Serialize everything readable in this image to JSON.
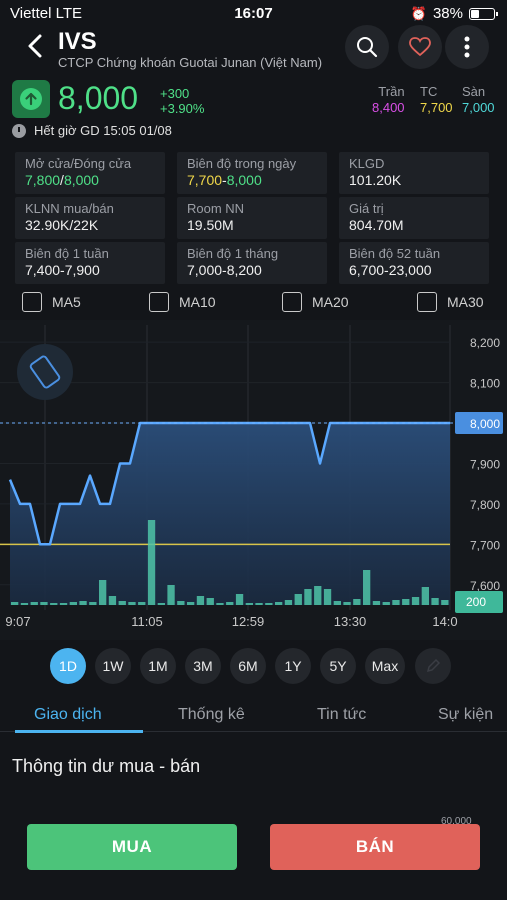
{
  "status": {
    "carrier": "Viettel  LTE",
    "time": "16:07",
    "battery": "38%",
    "battery_level": 0.38
  },
  "header": {
    "symbol": "IVS",
    "company_name": "CTCP Chứng khoán Guotai Junan (Việt Nam)",
    "icons": [
      "back-arrow-icon",
      "search-icon",
      "heart-icon",
      "more-vertical-icon"
    ]
  },
  "quote": {
    "price": "8,000",
    "change": "+300",
    "change_pct": "+3.90%",
    "ceiling_label": "Trần",
    "ceiling": "8,400",
    "ref_label": "TC",
    "ref": "7,700",
    "floor_label": "Sàn",
    "floor": "7,000",
    "session": "Hết giờ GD 15:05 01/08"
  },
  "colors": {
    "up": "#4fe088",
    "ref": "#f0d84a",
    "ceiling": "#d94fe6",
    "floor": "#4fd8d8",
    "accent": "#4cb4f0",
    "buy": "#4cc47a",
    "sell": "#e0625a"
  },
  "stats": [
    {
      "label": "Mở cửa/Đóng cửa",
      "value_a": "7,800",
      "sep": "/",
      "value_b": "8,000"
    },
    {
      "label": "Biên độ trong ngày",
      "value_a": "7,700",
      "sep": "-",
      "value_b": "8,000"
    },
    {
      "label": "KLGD",
      "value": "101.20K"
    },
    {
      "label": "KLNN mua/bán",
      "value": "32.90K/22K"
    },
    {
      "label": "Room NN",
      "value": "19.50M"
    },
    {
      "label": "Giá trị",
      "value": "804.70M"
    },
    {
      "label": "Biên độ 1 tuần",
      "value": "7,400-7,900"
    },
    {
      "label": "Biên độ 1 tháng",
      "value": "7,000-8,200"
    },
    {
      "label": "Biên độ 52 tuần",
      "value": "6,700-23,000"
    }
  ],
  "ma_options": [
    "MA5",
    "MA10",
    "MA20",
    "MA30"
  ],
  "chart_data": {
    "type": "line",
    "y_ticks": [
      "8,200",
      "8,100",
      "8,000",
      "7,900",
      "7,800",
      "7,700",
      "7,600"
    ],
    "ylim": [
      7550,
      8230
    ],
    "x_ticks": [
      "9:07",
      "11:05",
      "12:59",
      "13:30",
      "14:0"
    ],
    "current_label": "8,000",
    "current_value": 8000,
    "reference_value": 7700,
    "volume_label": "200",
    "price_points": [
      7860,
      7800,
      7800,
      7700,
      7700,
      7800,
      7800,
      7800,
      7870,
      7800,
      7800,
      7900,
      7900,
      8000,
      8000,
      8000,
      8000,
      8000,
      8000,
      8000,
      8000,
      8000,
      8000,
      8000,
      8000,
      8000,
      8000,
      8000,
      8000,
      8000,
      8000,
      7900,
      8000,
      8000,
      8000,
      8000,
      8000,
      8000,
      8000,
      8000,
      8000,
      8000,
      8000,
      8000,
      8000
    ],
    "volume_points": [
      3,
      2,
      3,
      3,
      2,
      2,
      3,
      4,
      3,
      25,
      9,
      4,
      3,
      3,
      85,
      2,
      20,
      4,
      3,
      9,
      7,
      2,
      3,
      11,
      2,
      2,
      2,
      3,
      5,
      11,
      16,
      19,
      16,
      4,
      3,
      6,
      35,
      4,
      3,
      5,
      6,
      8,
      18,
      7,
      5
    ]
  },
  "periods": [
    "1D",
    "1W",
    "1M",
    "3M",
    "6M",
    "1Y",
    "5Y",
    "Max"
  ],
  "tabs": [
    "Giao dịch",
    "Thống kê",
    "Tin tức",
    "Sự kiện"
  ],
  "section_title": "Thông tin dư mua - bán",
  "depth_axis_label": "60,000",
  "actions": {
    "buy": "MUA",
    "sell": "BÁN"
  }
}
